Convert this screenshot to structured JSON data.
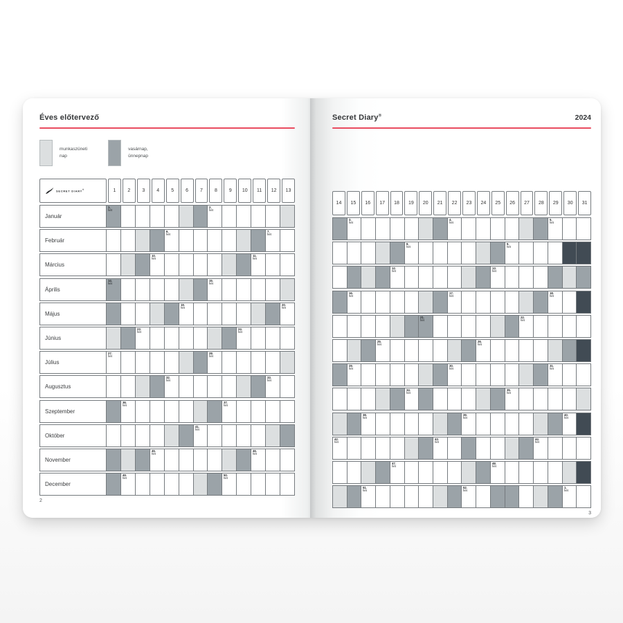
{
  "accent_color": "#e94b5f",
  "cell_colors": {
    "saturday": "#dcdfe0",
    "sunday_holiday": "#9ba3a8",
    "nonexistent": "#414b54"
  },
  "left_page": {
    "title": "Éves előtervező",
    "page_number": "2",
    "legend": [
      {
        "type": "saturday",
        "line1": "munkaszüneti",
        "line2": "nap"
      },
      {
        "type": "sunday_holiday",
        "line1": "vasárnap,",
        "line2": "ünnepnap"
      }
    ],
    "days": [
      1,
      2,
      3,
      4,
      5,
      6,
      7,
      8,
      9,
      10,
      11,
      12,
      13
    ]
  },
  "right_page": {
    "title": "Secret Diary",
    "title_reg": "®",
    "year": "2024",
    "page_number": "3",
    "days": [
      14,
      15,
      16,
      17,
      18,
      19,
      20,
      21,
      22,
      23,
      24,
      25,
      26,
      27,
      28,
      29,
      30,
      31
    ]
  },
  "logo": {
    "text": "SECRET DIARY",
    "reg": "®"
  },
  "week_suffix": "hét",
  "months": [
    {
      "name": "Január",
      "sat": [
        6,
        13,
        20,
        27
      ],
      "dark": [
        1,
        7,
        14,
        21,
        28
      ],
      "off": [],
      "weeks": {
        "1": "1.",
        "8": "2.",
        "15": "3.",
        "22": "4.",
        "29": "5."
      }
    },
    {
      "name": "Február",
      "sat": [
        3,
        10,
        17,
        24
      ],
      "dark": [
        4,
        11,
        18,
        25
      ],
      "off": [
        30,
        31
      ],
      "weeks": {
        "5": "6.",
        "12": "7.",
        "19": "8.",
        "26": "9."
      }
    },
    {
      "name": "Március",
      "sat": [
        2,
        9,
        16,
        23,
        30
      ],
      "dark": [
        3,
        10,
        15,
        17,
        24,
        29,
        31
      ],
      "off": [],
      "weeks": {
        "4": "10.",
        "11": "11.",
        "18": "12.",
        "25": "13."
      }
    },
    {
      "name": "Április",
      "sat": [
        6,
        13,
        20,
        27
      ],
      "dark": [
        1,
        7,
        14,
        21,
        28
      ],
      "off": [
        31
      ],
      "weeks": {
        "1": "14.",
        "8": "15.",
        "15": "16.",
        "22": "17.",
        "29": "18."
      }
    },
    {
      "name": "Május",
      "sat": [
        4,
        11,
        18,
        25
      ],
      "dark": [
        1,
        5,
        12,
        19,
        20,
        26
      ],
      "off": [],
      "weeks": {
        "6": "19.",
        "13": "20.",
        "20": "21.",
        "27": "22."
      }
    },
    {
      "name": "Június",
      "sat": [
        1,
        8,
        15,
        22,
        29
      ],
      "dark": [
        2,
        9,
        16,
        23,
        30
      ],
      "off": [
        31
      ],
      "weeks": {
        "3": "23.",
        "10": "24.",
        "17": "25.",
        "24": "26."
      }
    },
    {
      "name": "Július",
      "sat": [
        6,
        13,
        20,
        27
      ],
      "dark": [
        7,
        14,
        21,
        28
      ],
      "off": [],
      "weeks": {
        "1": "27.",
        "8": "28.",
        "15": "29.",
        "22": "30.",
        "29": "31."
      }
    },
    {
      "name": "Augusztus",
      "sat": [
        3,
        10,
        17,
        24,
        31
      ],
      "dark": [
        4,
        11,
        18,
        20,
        25
      ],
      "off": [],
      "weeks": {
        "5": "32.",
        "12": "33.",
        "19": "34.",
        "26": "35."
      }
    },
    {
      "name": "Szeptember",
      "sat": [
        7,
        14,
        21,
        28
      ],
      "dark": [
        1,
        8,
        15,
        22,
        29
      ],
      "off": [
        31
      ],
      "weeks": {
        "2": "36.",
        "9": "37.",
        "16": "38.",
        "23": "39.",
        "30": "40."
      }
    },
    {
      "name": "Október",
      "sat": [
        5,
        12,
        19,
        26
      ],
      "dark": [
        6,
        13,
        20,
        23,
        27
      ],
      "off": [],
      "weeks": {
        "7": "41.",
        "14": "42.",
        "21": "43.",
        "28": "44."
      }
    },
    {
      "name": "November",
      "sat": [
        2,
        9,
        16,
        23,
        30
      ],
      "dark": [
        1,
        3,
        10,
        17,
        24
      ],
      "off": [
        31
      ],
      "weeks": {
        "4": "45.",
        "11": "46.",
        "18": "47.",
        "25": "48."
      }
    },
    {
      "name": "December",
      "sat": [
        7,
        14,
        21,
        28
      ],
      "dark": [
        1,
        8,
        15,
        22,
        25,
        26,
        29
      ],
      "off": [],
      "weeks": {
        "2": "49.",
        "9": "50.",
        "16": "51.",
        "23": "52.",
        "30": "1."
      }
    }
  ]
}
